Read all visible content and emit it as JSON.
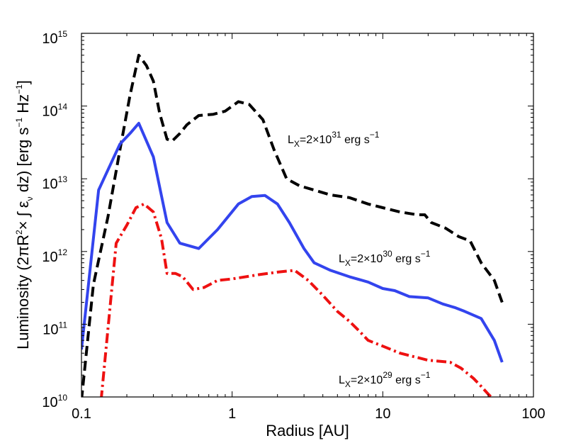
{
  "chart_data": {
    "type": "line",
    "title": "",
    "xlabel": "Radius [AU]",
    "ylabel": "Luminosity (2πR²× ∫ ε_ν dz)  [erg s⁻¹ Hz⁻¹]",
    "ylabel_parts": {
      "main": "Luminosity (2πR",
      "sup1": "2",
      "mid": "× ∫ ε",
      "sub": "ν",
      "post": " dz)  [erg s",
      "sup2": "−1",
      "post2": " Hz",
      "sup3": "−1",
      "end": "]"
    },
    "xscale": "log",
    "yscale": "log",
    "xlim": [
      0.1,
      100
    ],
    "ylim": [
      10000000000.0,
      1000000000000000.0
    ],
    "x_ticks": [
      {
        "value": 0.1,
        "label": "0.1"
      },
      {
        "value": 1,
        "label": "1"
      },
      {
        "value": 10,
        "label": "10"
      },
      {
        "value": 100,
        "label": "100"
      }
    ],
    "y_ticks": [
      {
        "value": 10000000000.0,
        "base": "10",
        "exp": "10"
      },
      {
        "value": 100000000000.0,
        "base": "10",
        "exp": "11"
      },
      {
        "value": 1000000000000.0,
        "base": "10",
        "exp": "12"
      },
      {
        "value": 10000000000000.0,
        "base": "10",
        "exp": "13"
      },
      {
        "value": 100000000000000.0,
        "base": "10",
        "exp": "14"
      },
      {
        "value": 1000000000000000.0,
        "base": "10",
        "exp": "15"
      }
    ],
    "series": [
      {
        "name": "L_X=2×10^31 erg s^-1",
        "color": "#000000",
        "dash": "dashed",
        "points": [
          [
            0.1,
            9000000000.0
          ],
          [
            0.12,
            350000000000.0
          ],
          [
            0.15,
            3000000000000.0
          ],
          [
            0.18,
            25000000000000.0
          ],
          [
            0.21,
            140000000000000.0
          ],
          [
            0.24,
            500000000000000.0
          ],
          [
            0.27,
            360000000000000.0
          ],
          [
            0.3,
            220000000000000.0
          ],
          [
            0.33,
            80000000000000.0
          ],
          [
            0.37,
            35000000000000.0
          ],
          [
            0.4,
            33000000000000.0
          ],
          [
            0.45,
            42000000000000.0
          ],
          [
            0.5,
            55000000000000.0
          ],
          [
            0.6,
            74000000000000.0
          ],
          [
            0.75,
            77000000000000.0
          ],
          [
            0.9,
            85000000000000.0
          ],
          [
            1.1,
            115000000000000.0
          ],
          [
            1.3,
            105000000000000.0
          ],
          [
            1.6,
            65000000000000.0
          ],
          [
            1.9,
            25000000000000.0
          ],
          [
            2.3,
            10000000000000.0
          ],
          [
            2.8,
            8000000000000.0
          ],
          [
            3.5,
            7000000000000.0
          ],
          [
            4.5,
            6000000000000.0
          ],
          [
            6,
            5500000000000.0
          ],
          [
            8,
            4500000000000.0
          ],
          [
            10,
            4000000000000.0
          ],
          [
            13,
            3500000000000.0
          ],
          [
            17,
            3200000000000.0
          ],
          [
            19,
            3200000000000.0
          ],
          [
            21,
            2500000000000.0
          ],
          [
            26,
            2100000000000.0
          ],
          [
            32,
            1600000000000.0
          ],
          [
            38,
            1400000000000.0
          ],
          [
            45,
            700000000000.0
          ],
          [
            55,
            400000000000.0
          ],
          [
            62,
            200000000000.0
          ]
        ]
      },
      {
        "name": "L_X=2×10^30 erg s^-1",
        "color": "#3344ee",
        "dash": "solid",
        "points": [
          [
            0.1,
            45000000000.0
          ],
          [
            0.13,
            7000000000000.0
          ],
          [
            0.18,
            30000000000000.0
          ],
          [
            0.21,
            42000000000000.0
          ],
          [
            0.24,
            58000000000000.0
          ],
          [
            0.3,
            20000000000000.0
          ],
          [
            0.37,
            2500000000000.0
          ],
          [
            0.45,
            1300000000000.0
          ],
          [
            0.6,
            1100000000000.0
          ],
          [
            0.8,
            2000000000000.0
          ],
          [
            1.1,
            4500000000000.0
          ],
          [
            1.35,
            5700000000000.0
          ],
          [
            1.65,
            5900000000000.0
          ],
          [
            2,
            4500000000000.0
          ],
          [
            2.4,
            2500000000000.0
          ],
          [
            3,
            1100000000000.0
          ],
          [
            3.5,
            700000000000.0
          ],
          [
            4.5,
            550000000000.0
          ],
          [
            6,
            450000000000.0
          ],
          [
            8,
            380000000000.0
          ],
          [
            10,
            310000000000.0
          ],
          [
            12,
            290000000000.0
          ],
          [
            15,
            240000000000.0
          ],
          [
            20,
            230000000000.0
          ],
          [
            25,
            190000000000.0
          ],
          [
            30,
            170000000000.0
          ],
          [
            35,
            150000000000.0
          ],
          [
            45,
            120000000000.0
          ],
          [
            55,
            60000000000.0
          ],
          [
            62,
            30000000000.0
          ]
        ]
      },
      {
        "name": "L_X=2×10^29 erg s^-1",
        "color": "#ee1111",
        "dash": "dashdot",
        "points": [
          [
            0.135,
            9000000000.0
          ],
          [
            0.17,
            1300000000000.0
          ],
          [
            0.2,
            2300000000000.0
          ],
          [
            0.23,
            4000000000000.0
          ],
          [
            0.26,
            4500000000000.0
          ],
          [
            0.3,
            3500000000000.0
          ],
          [
            0.34,
            1500000000000.0
          ],
          [
            0.37,
            500000000000.0
          ],
          [
            0.42,
            500000000000.0
          ],
          [
            0.47,
            450000000000.0
          ],
          [
            0.55,
            300000000000.0
          ],
          [
            0.65,
            320000000000.0
          ],
          [
            0.8,
            400000000000.0
          ],
          [
            1,
            420000000000.0
          ],
          [
            1.5,
            480000000000.0
          ],
          [
            2,
            520000000000.0
          ],
          [
            2.6,
            550000000000.0
          ],
          [
            3.2,
            400000000000.0
          ],
          [
            4,
            250000000000.0
          ],
          [
            5,
            150000000000.0
          ],
          [
            6,
            110000000000.0
          ],
          [
            7,
            80000000000.0
          ],
          [
            8,
            60000000000.0
          ],
          [
            10,
            50000000000.0
          ],
          [
            13,
            40000000000.0
          ],
          [
            20,
            32000000000.0
          ],
          [
            28,
            30000000000.0
          ],
          [
            33,
            25000000000.0
          ],
          [
            40,
            18000000000.0
          ],
          [
            45,
            14000000000.0
          ],
          [
            50,
            11000000000.0
          ],
          [
            55,
            9000000000.0
          ]
        ]
      }
    ],
    "annotations": [
      {
        "base": "L",
        "sub": "X",
        "pre": "=2×10",
        "exp": "31",
        "post": " erg s",
        "exp2": "−1"
      },
      {
        "base": "L",
        "sub": "X",
        "pre": "=2×10",
        "exp": "30",
        "post": " erg s",
        "exp2": "−1"
      },
      {
        "base": "L",
        "sub": "X",
        "pre": "=2×10",
        "exp": "29",
        "post": " erg s",
        "exp2": "−1"
      }
    ]
  }
}
